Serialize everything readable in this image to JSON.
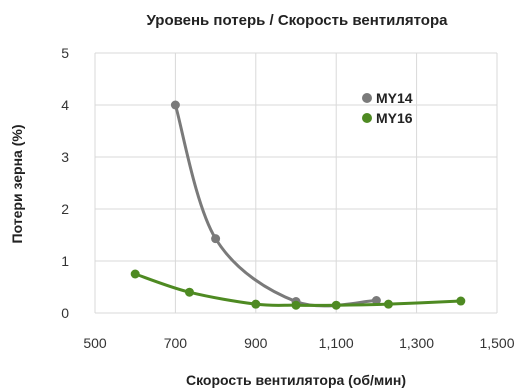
{
  "chart_data": {
    "type": "line",
    "title": "Уровень потерь / Скорость вентилятора",
    "xlabel": "Скорость вентилятора (об/мин)",
    "ylabel": "Потери зерна (%)",
    "xlim": [
      500,
      1500
    ],
    "ylim": [
      0,
      5
    ],
    "xticks": [
      500,
      700,
      900,
      1100,
      1300,
      1500
    ],
    "xtick_labels": [
      "500",
      "700",
      "900",
      "1,100",
      "1,300",
      "1,500"
    ],
    "yticks": [
      0,
      1,
      2,
      3,
      4,
      5
    ],
    "ytick_labels": [
      "0",
      "1",
      "2",
      "3",
      "4",
      "5"
    ],
    "grid": "vertical and horizontal",
    "legend_position": "top-right",
    "series": [
      {
        "name": "MY14",
        "color": "#7a7a7a",
        "x": [
          700,
          800,
          1000,
          1200
        ],
        "y": [
          4.0,
          1.43,
          0.22,
          0.24
        ]
      },
      {
        "name": "MY16",
        "color": "#4e8a22",
        "x": [
          600,
          735,
          900,
          1000,
          1100,
          1230,
          1410
        ],
        "y": [
          0.75,
          0.4,
          0.17,
          0.15,
          0.15,
          0.17,
          0.23
        ]
      }
    ]
  }
}
